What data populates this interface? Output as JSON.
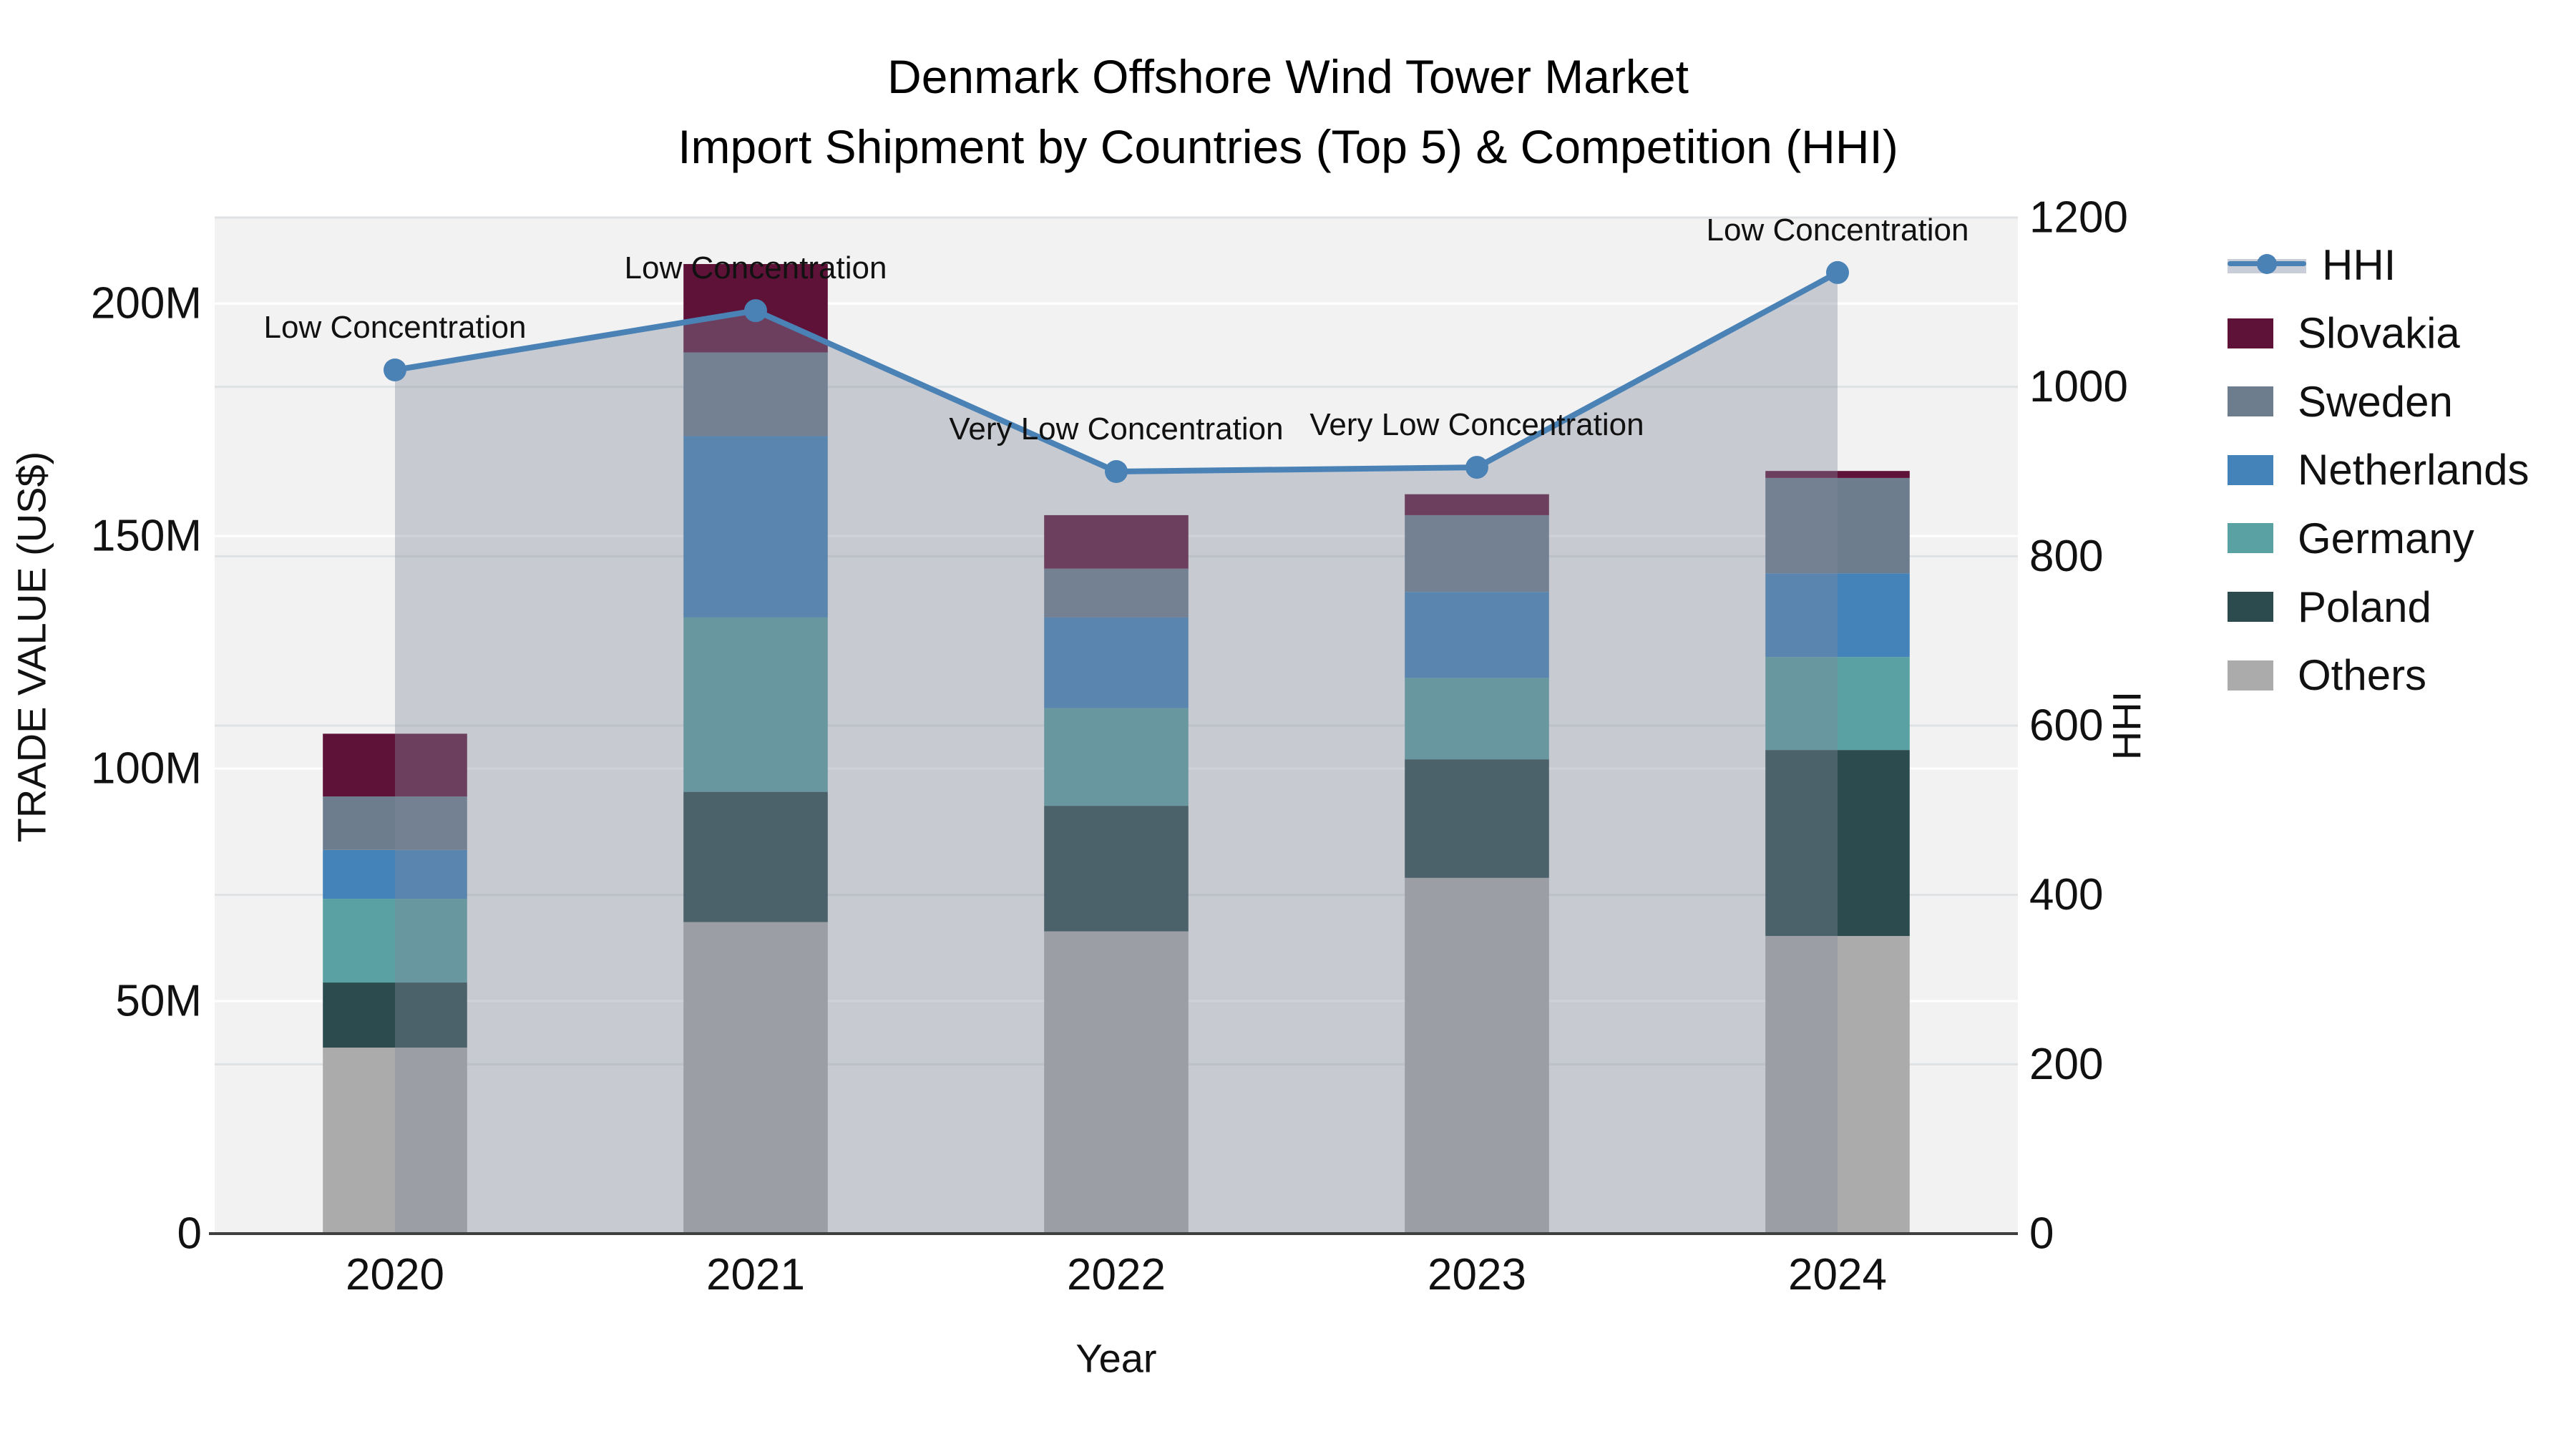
{
  "title": {
    "line1": "Denmark Offshore Wind Tower Market",
    "line2": "Import Shipment by Countries (Top 5) & Competition (HHI)"
  },
  "chart_data": {
    "type": "combo: stacked-bar (trade value) + line-with-area (HHI)",
    "categories": [
      "2020",
      "2021",
      "2022",
      "2023",
      "2024"
    ],
    "bar_unit": "million US$",
    "series": [
      {
        "name": "Others",
        "color": "#ababab",
        "values": [
          40.0,
          67.0,
          65.0,
          76.5,
          64.0
        ]
      },
      {
        "name": "Poland",
        "color": "#2c4b4e",
        "values": [
          14.0,
          28.0,
          27.0,
          25.5,
          40.0
        ]
      },
      {
        "name": "Germany",
        "color": "#59a1a2",
        "values": [
          18.0,
          37.5,
          21.0,
          17.5,
          20.0
        ]
      },
      {
        "name": "Netherlands",
        "color": "#4383ba",
        "values": [
          10.5,
          39.0,
          19.5,
          18.5,
          18.0
        ]
      },
      {
        "name": "Sweden",
        "color": "#6d7d8e",
        "values": [
          11.5,
          18.0,
          10.5,
          16.5,
          20.5
        ]
      },
      {
        "name": "Slovakia",
        "color": "#5e1238",
        "values": [
          13.5,
          19.0,
          11.5,
          4.5,
          1.5
        ]
      }
    ],
    "bar_totals": [
      107.5,
      208.5,
      154.5,
      159.0,
      164.0
    ],
    "line_series": {
      "name": "HHI",
      "color": "#4a82b6",
      "area_color": "rgba(128,137,155,0.38)",
      "values": [
        1020,
        1090,
        900,
        905,
        1135
      ]
    },
    "annotations": [
      {
        "category": "2020",
        "text": "Low Concentration"
      },
      {
        "category": "2021",
        "text": "Low Concentration"
      },
      {
        "category": "2022",
        "text": "Very Low Concentration"
      },
      {
        "category": "2023",
        "text": "Very Low Concentration"
      },
      {
        "category": "2024",
        "text": "Low Concentration"
      }
    ],
    "left_axis": {
      "label": "TRADE VALUE (US$)",
      "tick_labels": [
        "0",
        "50M",
        "100M",
        "150M",
        "200M"
      ],
      "tick_values": [
        0,
        50,
        100,
        150,
        200
      ],
      "range_max": 218.5
    },
    "right_axis": {
      "label": "HHI",
      "tick_labels": [
        "0",
        "200",
        "400",
        "600",
        "800",
        "1000",
        "1200"
      ],
      "tick_values": [
        0,
        200,
        400,
        600,
        800,
        1000,
        1200
      ],
      "range_max": 1200
    },
    "x_axis": {
      "label": "Year"
    },
    "legend_position": "right",
    "grid": true,
    "legend": [
      {
        "label": "HHI",
        "kind": "line",
        "color": "#4a82b6"
      },
      {
        "label": "Slovakia",
        "kind": "swatch",
        "color": "#5e1238"
      },
      {
        "label": "Sweden",
        "kind": "swatch",
        "color": "#6d7d8e"
      },
      {
        "label": "Netherlands",
        "kind": "swatch",
        "color": "#4383ba"
      },
      {
        "label": "Germany",
        "kind": "swatch",
        "color": "#59a1a2"
      },
      {
        "label": "Poland",
        "kind": "swatch",
        "color": "#2c4b4e"
      },
      {
        "label": "Others",
        "kind": "swatch",
        "color": "#ababab"
      }
    ]
  },
  "style_colors": {
    "plot_bg": "#f2f2f3",
    "grid_left": "#ffffff",
    "grid_right": "#dfe2e5",
    "axis_line": "#3f3f3f",
    "text": "#111111"
  }
}
